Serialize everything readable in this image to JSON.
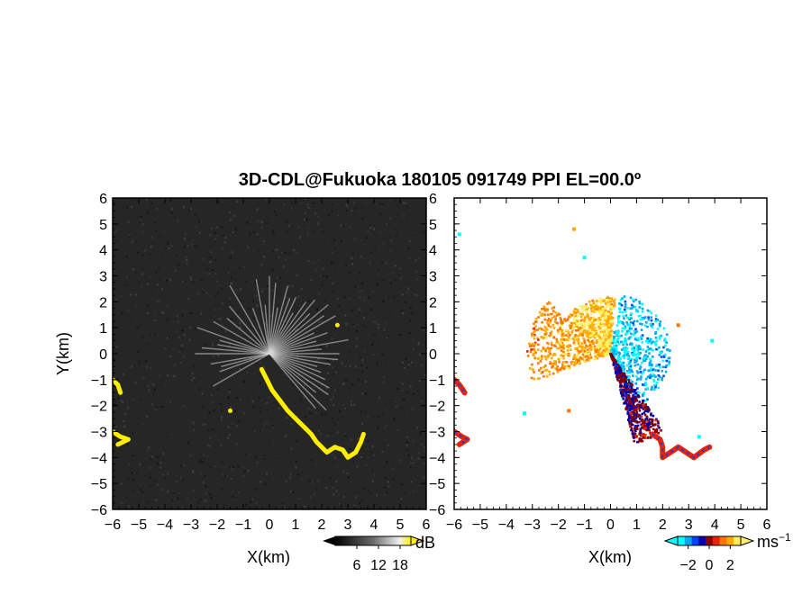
{
  "figure": {
    "title": "3D-CDL@Fukuoka 180105 091749 PPI EL=00.0º"
  },
  "chart_data": [
    {
      "type": "heatmap",
      "panel": "left",
      "quantity": "SNR",
      "xlabel": "X(km)",
      "ylabel": "Y(km)",
      "xlim": [
        -6,
        6
      ],
      "ylim": [
        -6,
        6
      ],
      "xticks": [
        "−6",
        "−5",
        "−4",
        "−3",
        "−2",
        "−1",
        "0",
        "1",
        "2",
        "3",
        "4",
        "5",
        "6"
      ],
      "yticks": [
        "6",
        "5",
        "4",
        "3",
        "2",
        "1",
        "0",
        "−1",
        "−2",
        "−3",
        "−4",
        "−5",
        "−6"
      ],
      "background_color": "#2b2b2b",
      "ray_color": "#d8d8d8",
      "highlight_color": "#ffee00",
      "colorbar": {
        "unit": "dB",
        "ticks": [
          "6",
          "12",
          "18"
        ],
        "range": [
          0,
          21
        ]
      },
      "highlights": [
        {
          "name": "near-field streak",
          "points": [
            [
              -0.3,
              -0.6
            ],
            [
              -0.1,
              -1.0
            ],
            [
              0.1,
              -1.4
            ],
            [
              0.4,
              -1.8
            ],
            [
              0.7,
              -2.2
            ],
            [
              1.0,
              -2.5
            ],
            [
              1.3,
              -2.8
            ],
            [
              1.6,
              -3.1
            ],
            [
              1.8,
              -3.4
            ],
            [
              2.0,
              -3.6
            ],
            [
              2.2,
              -3.8
            ],
            [
              2.5,
              -3.6
            ],
            [
              2.8,
              -3.7
            ],
            [
              3.0,
              -4.0
            ],
            [
              3.3,
              -3.8
            ],
            [
              3.5,
              -3.4
            ],
            [
              3.6,
              -3.1
            ]
          ]
        },
        {
          "name": "west edge upper",
          "points": [
            [
              -6.0,
              -1.0
            ],
            [
              -5.8,
              -1.2
            ],
            [
              -5.7,
              -1.5
            ]
          ]
        },
        {
          "name": "west edge lower",
          "points": [
            [
              -6.0,
              -3.0
            ],
            [
              -5.7,
              -3.2
            ],
            [
              -5.4,
              -3.3
            ],
            [
              -5.8,
              -3.5
            ]
          ]
        },
        {
          "name": "small spot ne",
          "points": [
            [
              2.6,
              1.1
            ]
          ]
        },
        {
          "name": "small spot sw",
          "points": [
            [
              -1.5,
              -2.2
            ]
          ]
        }
      ],
      "ray_directions_deg": [
        180,
        175,
        170,
        165,
        160,
        150,
        140,
        130,
        120,
        110,
        100,
        95,
        90,
        85,
        80,
        75,
        70,
        65,
        60,
        55,
        50,
        45,
        40,
        35,
        30,
        25,
        20,
        15,
        10,
        5,
        0,
        -5,
        -10,
        -15,
        -20,
        -25,
        -30,
        -35,
        -40,
        -45,
        -50,
        -150,
        -160,
        -165,
        -170
      ]
    },
    {
      "type": "heatmap",
      "panel": "right",
      "quantity": "radial velocity",
      "xlabel": "X(km)",
      "xlim": [
        -6,
        6
      ],
      "ylim": [
        -6,
        6
      ],
      "xticks": [
        "−6",
        "−5",
        "−4",
        "−3",
        "−2",
        "−1",
        "0",
        "1",
        "2",
        "3",
        "4",
        "5",
        "6"
      ],
      "yticks": [
        "6",
        "5",
        "4",
        "3",
        "2",
        "1",
        "0",
        "−1",
        "−2",
        "−3",
        "−4",
        "−5",
        "−6"
      ],
      "colorbar": {
        "unit": "ms",
        "unit_exponent": "−1",
        "ticks": [
          "−2",
          "0",
          "2"
        ],
        "range": [
          -3,
          3
        ],
        "colors": [
          "#00ffff",
          "#00aaee",
          "#0044ff",
          "#0000aa",
          "#880000",
          "#ee2200",
          "#ff7700",
          "#ffaa00",
          "#ffee66"
        ]
      },
      "lobes": [
        {
          "name": "west positive lobe",
          "angle_range_deg": [
            140,
            200
          ],
          "max_range_km": 3.2,
          "value": 2.2
        },
        {
          "name": "north positive lobe",
          "angle_range_deg": [
            85,
            140
          ],
          "max_range_km": 2.2,
          "value": 2.6
        },
        {
          "name": "east negative lobe",
          "angle_range_deg": [
            -60,
            80
          ],
          "max_range_km": 2.3,
          "value": -2.4
        },
        {
          "name": "south mixed streak",
          "angle_range_deg": [
            -75,
            -55
          ],
          "max_range_km": 3.6,
          "value": -0.5
        }
      ],
      "edge_echoes": [
        {
          "name": "west edge upper",
          "points": [
            [
              -6.0,
              -1.0
            ],
            [
              -5.8,
              -1.2
            ],
            [
              -5.6,
              -1.5
            ]
          ],
          "value": 0.6
        },
        {
          "name": "west edge lower",
          "points": [
            [
              -6.0,
              -3.0
            ],
            [
              -5.7,
              -3.2
            ],
            [
              -5.5,
              -3.3
            ],
            [
              -5.8,
              -3.5
            ]
          ],
          "value": 0.6
        },
        {
          "name": "south-east streak",
          "points": [
            [
              1.6,
              -3.1
            ],
            [
              1.9,
              -3.3
            ],
            [
              2.0,
              -3.6
            ],
            [
              2.0,
              -4.0
            ],
            [
              2.3,
              -3.8
            ],
            [
              2.6,
              -3.6
            ],
            [
              2.9,
              -3.8
            ],
            [
              3.2,
              -4.0
            ],
            [
              3.6,
              -3.7
            ],
            [
              3.8,
              -3.6
            ]
          ],
          "value": -0.3
        }
      ],
      "isolated_points": [
        {
          "xy": [
            -1.4,
            4.8
          ],
          "value": 2.0
        },
        {
          "xy": [
            -5.8,
            4.6
          ],
          "value": -2.8
        },
        {
          "xy": [
            2.6,
            1.1
          ],
          "value": 1.0
        },
        {
          "xy": [
            3.9,
            0.5
          ],
          "value": -3.0
        },
        {
          "xy": [
            3.4,
            -3.2
          ],
          "value": -3.0
        },
        {
          "xy": [
            -3.3,
            -2.3
          ],
          "value": -2.8
        },
        {
          "xy": [
            -1.6,
            -2.2
          ],
          "value": 1.0
        },
        {
          "xy": [
            -1.0,
            3.7
          ],
          "value": -3.0
        }
      ]
    }
  ]
}
